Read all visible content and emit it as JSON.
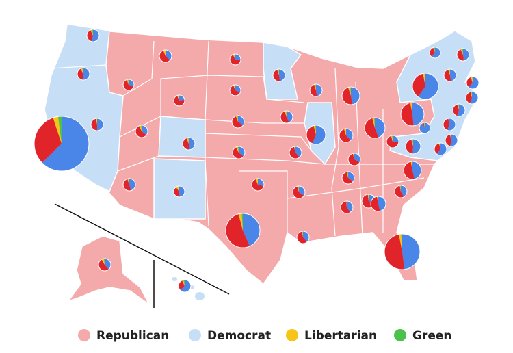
{
  "legend": [
    {
      "label": "Republican",
      "color": "#f4a9ab"
    },
    {
      "label": "Democrat",
      "color": "#c6dff6"
    },
    {
      "label": "Libertarian",
      "color": "#f5c518"
    },
    {
      "label": "Green",
      "color": "#4cc14c"
    }
  ],
  "pies": {
    "colors": [
      "#e0242a",
      "#4a86e8",
      "#f5c518",
      "#4cc14c"
    ],
    "items": [
      [
        38,
        54,
        5,
        2
      ],
      [
        39,
        50,
        5,
        3
      ],
      [
        32,
        62,
        3,
        2
      ],
      [
        45,
        48,
        3,
        0
      ],
      [
        59,
        28,
        4,
        1
      ],
      [
        56,
        36,
        6,
        0
      ],
      [
        68,
        22,
        5,
        1
      ],
      [
        45,
        27,
        4,
        1
      ],
      [
        43,
        48,
        5,
        1
      ],
      [
        49,
        45,
        4,
        1
      ],
      [
        40,
        48,
        9,
        1
      ],
      [
        63,
        27,
        6,
        1
      ],
      [
        62,
        32,
        6,
        0
      ],
      [
        59,
        34,
        5,
        1
      ],
      [
        57,
        36,
        5,
        2
      ],
      [
        65,
        29,
        6,
        0
      ],
      [
        52,
        43,
        3,
        1
      ],
      [
        45,
        46,
        4,
        1
      ],
      [
        51,
        42,
        4,
        1
      ],
      [
        57,
        38,
        3,
        1
      ],
      [
        61,
        34,
        3,
        1
      ],
      [
        58,
        38,
        2,
        1
      ],
      [
        47,
        47,
        4,
        1
      ],
      [
        39,
        56,
        3,
        1
      ],
      [
        47,
        47,
        4,
        1
      ],
      [
        57,
        38,
        5,
        0
      ],
      [
        63,
        33,
        3,
        1
      ],
      [
        61,
        35,
        3,
        1
      ],
      [
        58,
        40,
        1,
        0
      ],
      [
        62,
        34,
        2,
        0
      ],
      [
        51,
        46,
        3,
        0
      ],
      [
        49,
        48,
        2,
        1
      ],
      [
        55,
        41,
        2,
        1
      ],
      [
        50,
        46,
        3,
        0
      ],
      [
        44,
        50,
        3,
        1
      ],
      [
        69,
        27,
        3,
        1
      ],
      [
        52,
        44,
        3,
        1
      ],
      [
        48,
        48,
        2,
        1
      ],
      [
        37,
        59,
        2,
        1
      ],
      [
        45,
        48,
        5,
        2
      ],
      [
        46,
        47,
        4,
        1
      ],
      [
        30,
        57,
        3,
        2
      ],
      [
        33,
        60,
        4,
        1
      ],
      [
        39,
        54,
        3,
        1
      ],
      [
        41,
        55,
        3,
        1
      ],
      [
        41,
        55,
        2,
        1
      ],
      [
        42,
        53,
        3,
        1
      ],
      [
        34,
        60,
        3,
        1
      ],
      [
        4,
        91,
        2,
        1
      ],
      [
        51,
        37,
        6,
        2
      ],
      [
        30,
        62,
        4,
        3
      ]
    ]
  }
}
